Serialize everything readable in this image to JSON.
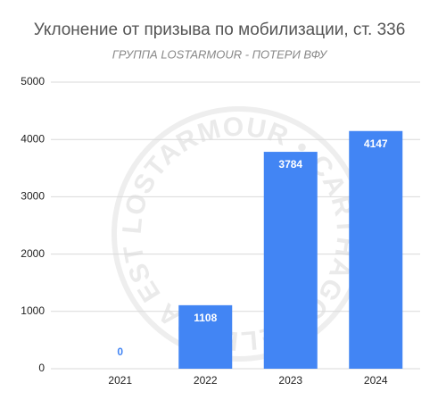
{
  "chart_data": {
    "type": "bar",
    "title": "Уклонение от призыва по мобилизации, ст. 336",
    "subtitle": "ГРУППА LOSTARMOUR - ПОТЕРИ ВФУ",
    "watermark": "LOSTARMOUR • CARTHAGO DELENDA EST",
    "categories": [
      "2021",
      "2022",
      "2023",
      "2024"
    ],
    "values": [
      0,
      1108,
      3784,
      4147
    ],
    "color": "#4285f4",
    "ylim": [
      0,
      5000
    ],
    "yticks": [
      0,
      1000,
      2000,
      3000,
      4000,
      5000
    ],
    "grid": true
  }
}
